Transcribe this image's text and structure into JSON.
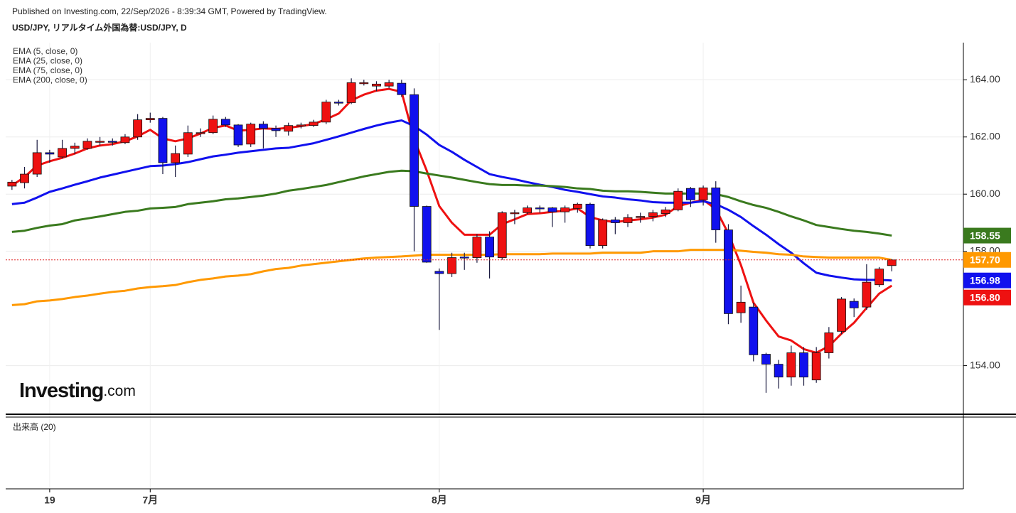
{
  "chart_data": {
    "type": "candlestick",
    "caption": "Published on Investing.com, 22/Sep/2026 - 8:39:34 GMT, Powered by TradingView.",
    "title": "USD/JPY, リアルタイム外国為替:USD/JPY, D",
    "volume_title": "出来高 (20)",
    "watermark_brand": "Investing",
    "watermark_suffix": ".com",
    "categories": [
      null,
      null,
      null,
      "19",
      null,
      null,
      null,
      null,
      null,
      null,
      null,
      "7月",
      null,
      null,
      null,
      null,
      null,
      null,
      null,
      null,
      null,
      null,
      null,
      null,
      null,
      null,
      null,
      null,
      null,
      null,
      null,
      null,
      null,
      null,
      "8月",
      null,
      null,
      null,
      null,
      null,
      null,
      null,
      null,
      null,
      null,
      null,
      null,
      null,
      null,
      null,
      null,
      null,
      null,
      null,
      null,
      "9月",
      null,
      null,
      null,
      null,
      null,
      null,
      null,
      null,
      null,
      null,
      null,
      null,
      null,
      null,
      null
    ],
    "candles": {
      "up_color": "#ee1111",
      "down_color": "#1111ee",
      "open": [
        160.28,
        160.4,
        160.7,
        161.45,
        161.3,
        161.6,
        161.6,
        161.82,
        161.85,
        161.8,
        162.0,
        162.6,
        162.65,
        161.1,
        161.4,
        162.12,
        162.15,
        162.62,
        162.42,
        161.75,
        162.45,
        162.3,
        162.2,
        162.38,
        162.4,
        162.52,
        163.22,
        163.2,
        163.88,
        163.78,
        163.78,
        163.88,
        163.48,
        159.57,
        157.3,
        157.22,
        157.8,
        157.78,
        158.5,
        157.78,
        159.32,
        159.35,
        159.52,
        159.52,
        159.38,
        159.5,
        159.65,
        158.2,
        159.1,
        159.0,
        159.18,
        159.22,
        159.32,
        159.45,
        160.2,
        159.8,
        160.22,
        158.75,
        155.85,
        156.05,
        154.4,
        154.05,
        153.6,
        154.45,
        153.5,
        154.45,
        155.2,
        156.25,
        156.05,
        156.83,
        157.5
      ],
      "high": [
        160.5,
        160.95,
        161.9,
        161.55,
        161.9,
        161.8,
        161.95,
        162.0,
        161.95,
        162.1,
        162.8,
        162.85,
        162.7,
        161.7,
        162.4,
        162.3,
        162.75,
        162.7,
        162.45,
        162.5,
        162.55,
        162.4,
        162.5,
        162.5,
        162.6,
        163.3,
        163.3,
        164.05,
        164.0,
        163.95,
        164.0,
        164.0,
        163.7,
        159.6,
        157.4,
        157.95,
        157.95,
        158.6,
        158.7,
        159.4,
        159.45,
        159.6,
        159.6,
        159.55,
        159.6,
        159.7,
        159.7,
        159.15,
        159.2,
        159.3,
        159.35,
        159.45,
        159.55,
        160.2,
        160.25,
        160.3,
        160.45,
        158.95,
        156.8,
        156.2,
        154.45,
        154.2,
        154.7,
        154.65,
        154.65,
        155.35,
        156.4,
        156.35,
        157.55,
        157.45,
        157.72
      ],
      "low": [
        160.15,
        160.2,
        160.6,
        161.1,
        161.25,
        161.4,
        161.55,
        161.7,
        161.7,
        161.75,
        161.9,
        162.5,
        160.7,
        160.6,
        161.3,
        162.0,
        162.1,
        162.35,
        161.65,
        161.65,
        161.6,
        162.0,
        162.05,
        162.3,
        162.35,
        162.45,
        163.1,
        163.15,
        163.8,
        163.6,
        163.7,
        163.4,
        158.0,
        157.6,
        155.25,
        157.1,
        157.35,
        157.6,
        157.05,
        157.7,
        158.95,
        159.3,
        159.35,
        158.85,
        159.0,
        159.35,
        158.1,
        158.1,
        158.6,
        158.85,
        159.0,
        159.05,
        159.2,
        159.4,
        159.55,
        159.6,
        158.3,
        155.45,
        155.5,
        154.15,
        153.05,
        153.2,
        153.3,
        153.3,
        153.4,
        154.25,
        155.1,
        155.7,
        155.95,
        156.75,
        157.3
      ],
      "close": [
        160.42,
        160.7,
        161.45,
        161.4,
        161.6,
        161.68,
        161.85,
        161.85,
        161.82,
        162.0,
        162.6,
        162.65,
        161.1,
        161.42,
        162.15,
        162.15,
        162.62,
        162.42,
        161.72,
        162.45,
        162.3,
        162.22,
        162.4,
        162.42,
        162.52,
        163.22,
        163.2,
        163.9,
        163.9,
        163.85,
        163.9,
        163.48,
        159.57,
        157.62,
        157.22,
        157.78,
        157.78,
        158.5,
        157.8,
        159.35,
        159.35,
        159.52,
        159.5,
        159.38,
        159.52,
        159.65,
        158.2,
        159.1,
        159.0,
        159.18,
        159.22,
        159.35,
        159.45,
        160.1,
        159.8,
        160.22,
        158.75,
        155.82,
        156.22,
        154.38,
        154.05,
        153.6,
        154.45,
        153.6,
        154.45,
        155.15,
        156.33,
        156.02,
        156.92,
        157.38,
        157.7
      ]
    },
    "series": [
      {
        "name": "EMA (5, close, 0)",
        "color": "#ee1111",
        "last_label": "156.80",
        "values": [
          160.3,
          160.6,
          161.0,
          161.15,
          161.27,
          161.42,
          161.6,
          161.7,
          161.75,
          161.85,
          162.02,
          162.25,
          161.95,
          161.85,
          161.95,
          162.12,
          162.32,
          162.4,
          162.22,
          162.25,
          162.3,
          162.28,
          162.32,
          162.38,
          162.45,
          162.62,
          162.82,
          163.28,
          163.48,
          163.62,
          163.68,
          163.58,
          161.92,
          160.82,
          159.58,
          159.0,
          158.58,
          158.58,
          158.58,
          158.95,
          159.12,
          159.3,
          159.33,
          159.38,
          159.42,
          159.5,
          159.2,
          159.08,
          159.02,
          159.08,
          159.12,
          159.18,
          159.28,
          159.58,
          159.7,
          159.8,
          159.48,
          158.62,
          157.52,
          156.2,
          155.58,
          155.02,
          154.88,
          154.58,
          154.45,
          154.68,
          155.12,
          155.5,
          156.02,
          156.52,
          156.8
        ]
      },
      {
        "name": "EMA (25, close, 0)",
        "color": "#1111ee",
        "last_label": "156.98",
        "values": [
          159.65,
          159.7,
          159.88,
          160.08,
          160.2,
          160.33,
          160.45,
          160.58,
          160.68,
          160.78,
          160.88,
          160.98,
          161.0,
          161.05,
          161.12,
          161.22,
          161.32,
          161.38,
          161.45,
          161.5,
          161.55,
          161.6,
          161.62,
          161.7,
          161.78,
          161.9,
          162.02,
          162.15,
          162.28,
          162.4,
          162.5,
          162.58,
          162.38,
          162.08,
          161.72,
          161.48,
          161.2,
          160.95,
          160.7,
          160.6,
          160.52,
          160.42,
          160.33,
          160.25,
          160.15,
          160.08,
          160.0,
          159.92,
          159.88,
          159.82,
          159.78,
          159.72,
          159.7,
          159.7,
          159.7,
          159.75,
          159.65,
          159.45,
          159.2,
          158.88,
          158.58,
          158.25,
          157.95,
          157.58,
          157.25,
          157.15,
          157.08,
          157.02,
          157.0,
          157.0,
          156.98
        ]
      },
      {
        "name": "EMA (75, close, 0)",
        "color": "#3a7a1e",
        "last_label": "158.55",
        "values": [
          158.68,
          158.72,
          158.82,
          158.9,
          158.95,
          159.08,
          159.15,
          159.22,
          159.3,
          159.38,
          159.42,
          159.5,
          159.52,
          159.55,
          159.65,
          159.7,
          159.75,
          159.82,
          159.85,
          159.9,
          159.95,
          160.02,
          160.12,
          160.18,
          160.25,
          160.32,
          160.42,
          160.52,
          160.62,
          160.7,
          160.78,
          160.82,
          160.8,
          160.72,
          160.65,
          160.58,
          160.5,
          160.42,
          160.35,
          160.32,
          160.32,
          160.3,
          160.3,
          160.28,
          160.25,
          160.2,
          160.18,
          160.12,
          160.1,
          160.1,
          160.08,
          160.05,
          160.02,
          160.02,
          160.02,
          160.02,
          160.0,
          159.9,
          159.75,
          159.62,
          159.52,
          159.38,
          159.22,
          159.08,
          158.92,
          158.85,
          158.78,
          158.72,
          158.68,
          158.62,
          158.55
        ]
      },
      {
        "name": "EMA (200, close, 0)",
        "color": "#ff9900",
        "last_label": "157.70",
        "values": [
          156.12,
          156.15,
          156.25,
          156.28,
          156.33,
          156.4,
          156.45,
          156.52,
          156.58,
          156.62,
          156.7,
          156.75,
          156.78,
          156.82,
          156.92,
          157.0,
          157.05,
          157.12,
          157.15,
          157.2,
          157.3,
          157.38,
          157.42,
          157.5,
          157.55,
          157.6,
          157.65,
          157.7,
          157.75,
          157.78,
          157.8,
          157.82,
          157.85,
          157.88,
          157.88,
          157.88,
          157.88,
          157.88,
          157.88,
          157.9,
          157.9,
          157.9,
          157.9,
          157.92,
          157.92,
          157.92,
          157.92,
          157.95,
          157.95,
          157.95,
          157.95,
          158.0,
          158.0,
          158.0,
          158.05,
          158.05,
          158.05,
          158.05,
          158.02,
          157.98,
          157.95,
          157.9,
          157.88,
          157.82,
          157.8,
          157.78,
          157.78,
          157.78,
          157.78,
          157.78,
          157.7
        ]
      }
    ],
    "ylim": [
      152.3,
      165.3
    ],
    "yticks": [
      {
        "value": 154,
        "label": "154.00"
      },
      {
        "value": 158,
        "label": "158.00"
      },
      {
        "value": 160,
        "label": "160.00"
      },
      {
        "value": 162,
        "label": "162.00"
      },
      {
        "value": 164,
        "label": "164.00"
      }
    ],
    "grid": true
  }
}
